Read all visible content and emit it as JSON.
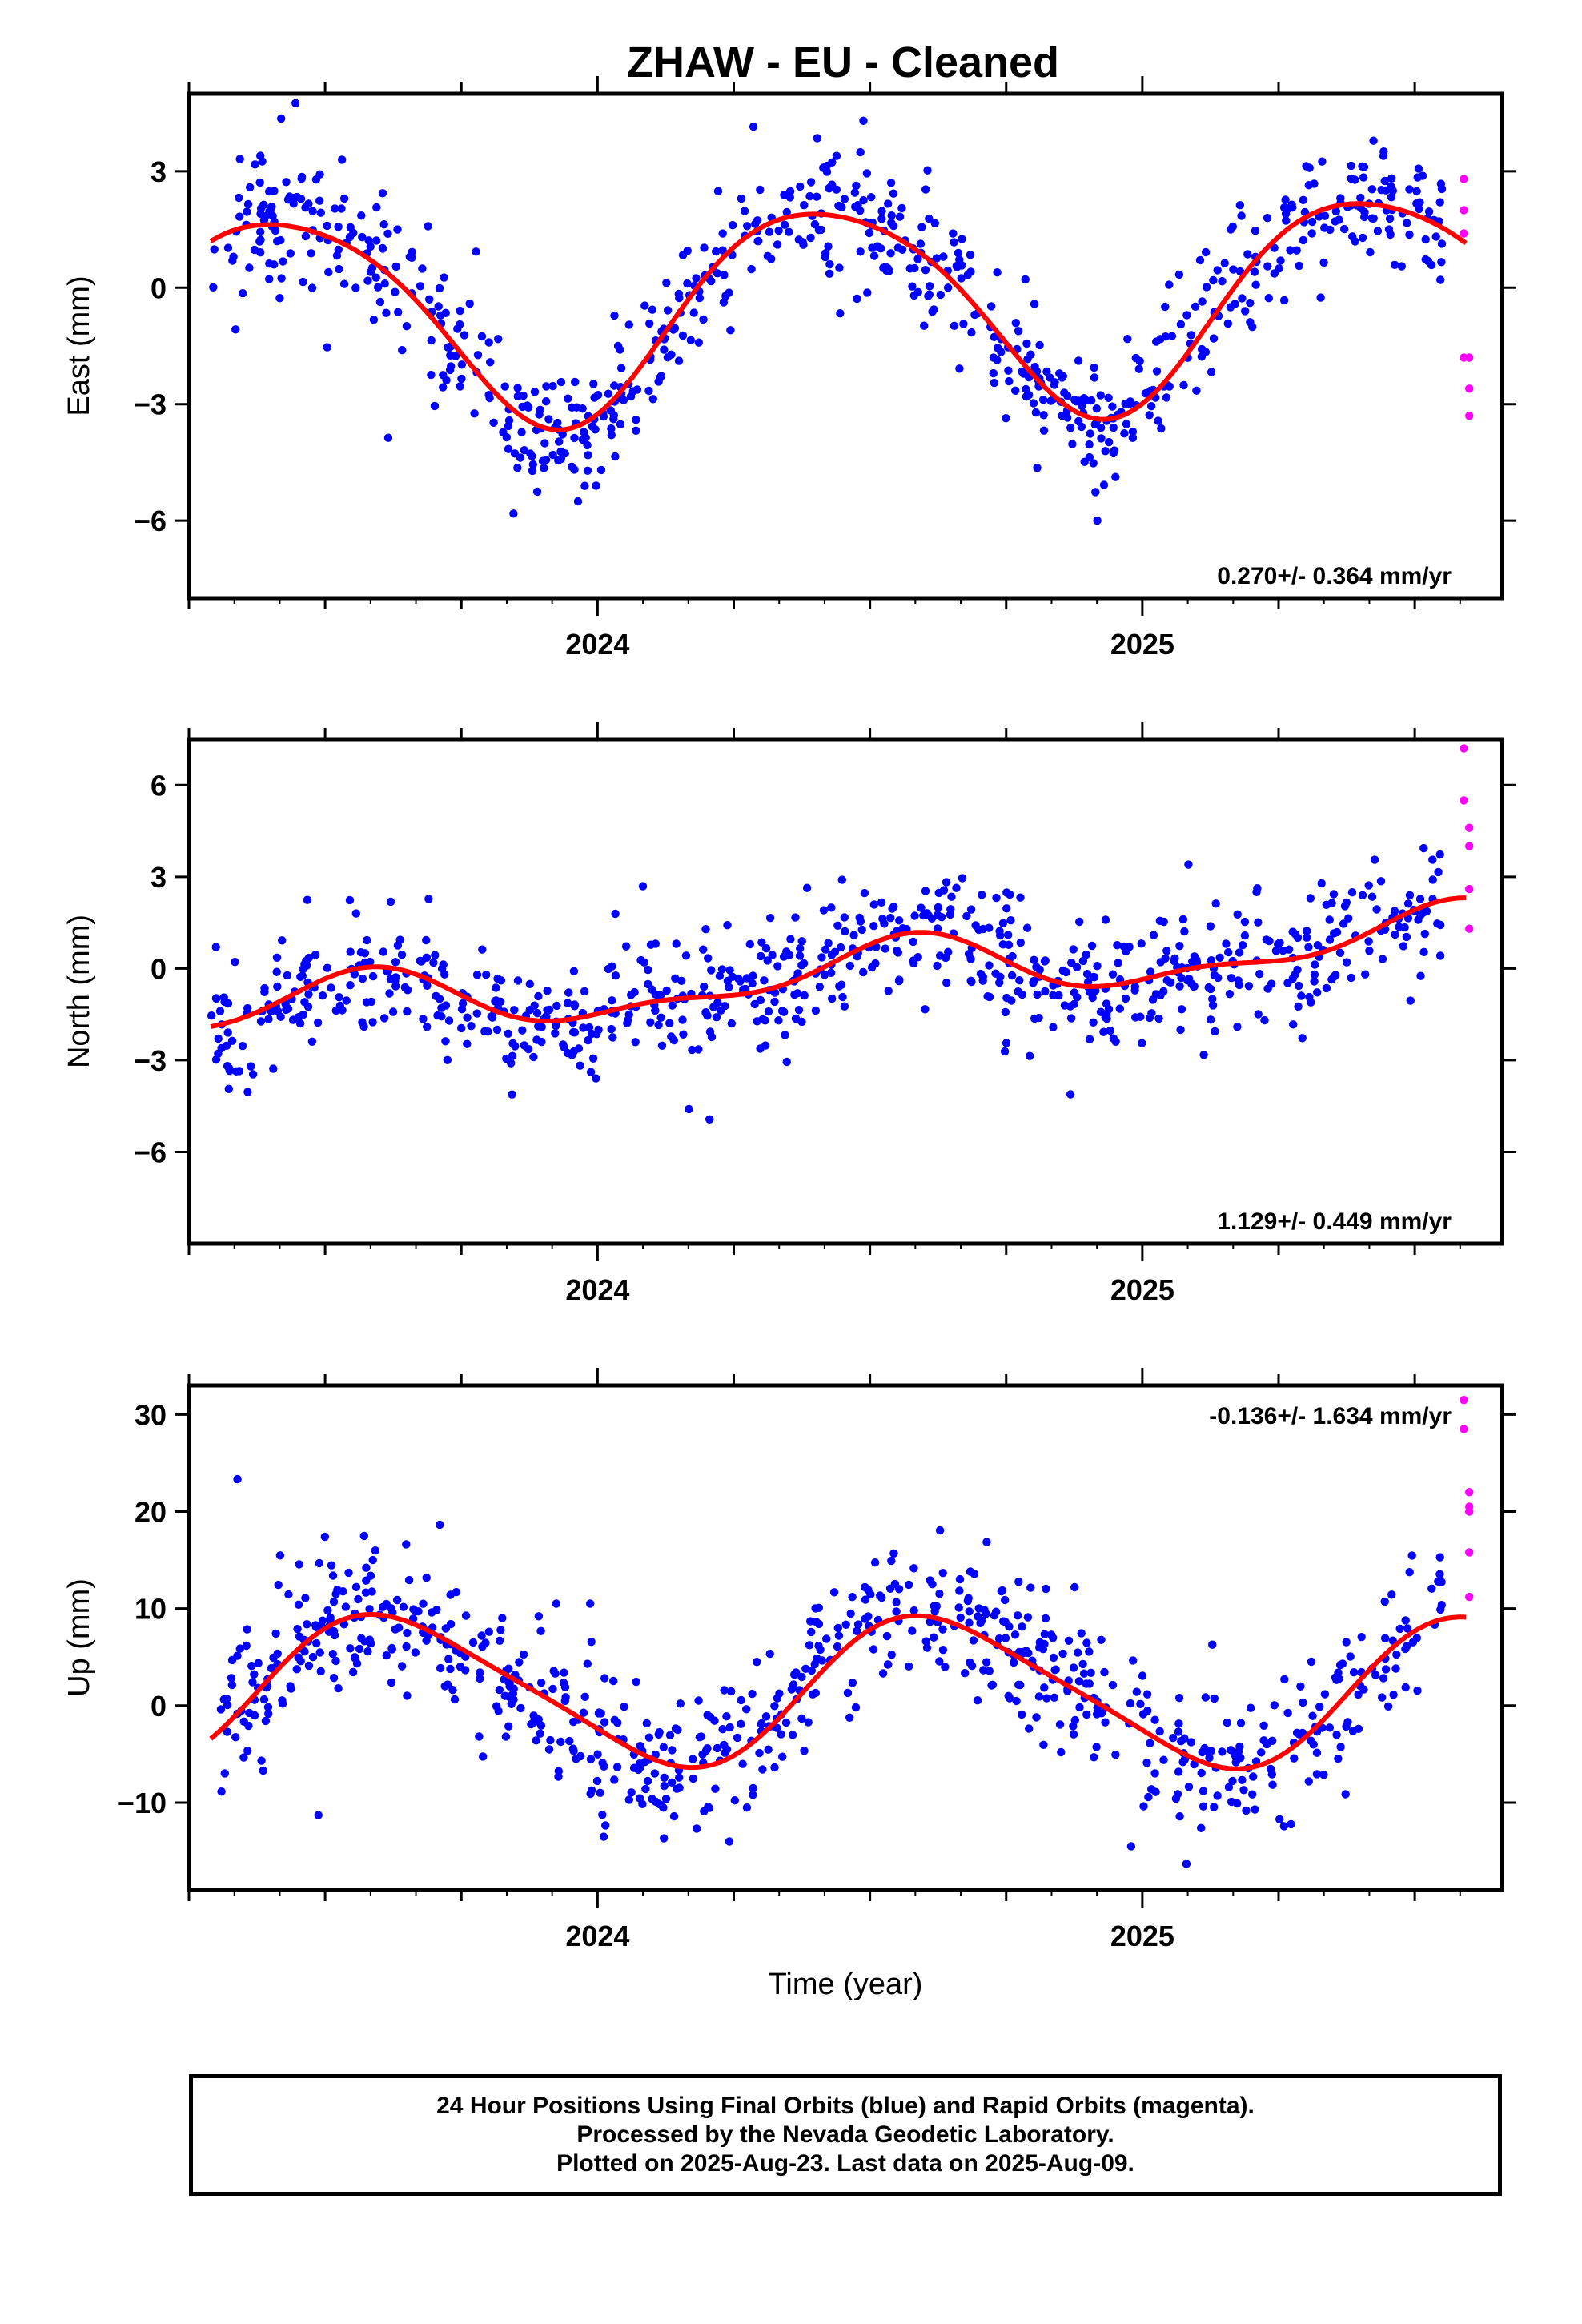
{
  "chart_data": [
    {
      "type": "scatter",
      "title": "ZHAW  - EU - Cleaned",
      "ylabel": "East (mm)",
      "xlabel": "",
      "xlim": [
        2023.25,
        2025.66
      ],
      "ylim": [
        -8.0,
        5.0
      ],
      "x_ticks": [
        {
          "value": 2024,
          "label": "2024"
        },
        {
          "value": 2025,
          "label": "2025"
        }
      ],
      "y_ticks": [
        {
          "value": 3,
          "label": "3"
        },
        {
          "value": 0,
          "label": "0"
        },
        {
          "value": -3,
          "label": "−3"
        },
        {
          "value": -6,
          "label": "−6"
        }
      ],
      "rate_text": "0.270+/- 0.364 mm/yr",
      "rate_pos": "bottom-right",
      "model": {
        "offset": -0.5,
        "trend": 0.27,
        "annual_amp": 2.7,
        "annual_peak": 2024.42,
        "semiannual_amp": 0.35,
        "semiannual_peak": 2024.2
      },
      "series": [
        {
          "name": "Final Orbits",
          "color": "#0000ff",
          "x_range": [
            2023.29,
            2025.55
          ],
          "n": 760,
          "scatter": 0.9,
          "seed": 11
        },
        {
          "name": "Rapid Orbits",
          "color": "#ff00ff",
          "x": [
            2025.59,
            2025.59,
            2025.59,
            2025.59,
            2025.6,
            2025.6,
            2025.6
          ],
          "y": [
            2.8,
            2.0,
            1.4,
            -1.8,
            -1.8,
            -2.6,
            -3.3
          ]
        }
      ]
    },
    {
      "type": "scatter",
      "title": "",
      "ylabel": "North (mm)",
      "xlabel": "",
      "xlim": [
        2023.25,
        2025.66
      ],
      "ylim": [
        -9.0,
        7.5
      ],
      "x_ticks": [
        {
          "value": 2024,
          "label": "2024"
        },
        {
          "value": 2025,
          "label": "2025"
        }
      ],
      "y_ticks": [
        {
          "value": 6,
          "label": "6"
        },
        {
          "value": 3,
          "label": "3"
        },
        {
          "value": 0,
          "label": "0"
        },
        {
          "value": -3,
          "label": "−3"
        },
        {
          "value": -6,
          "label": "−6"
        }
      ],
      "rate_text": "1.129+/- 0.449 mm/yr",
      "rate_pos": "bottom-right",
      "model": {
        "offset": -0.3,
        "trend": 1.129,
        "annual_amp": 0.9,
        "annual_peak": 2024.55,
        "semiannual_amp": 0.4,
        "semiannual_peak": 2024.6
      },
      "series": [
        {
          "name": "Final Orbits",
          "color": "#0000ff",
          "x_range": [
            2023.29,
            2025.55
          ],
          "n": 760,
          "scatter": 1.0,
          "seed": 23
        },
        {
          "name": "Rapid Orbits",
          "color": "#ff00ff",
          "x": [
            2025.59,
            2025.59,
            2025.6,
            2025.6,
            2025.6,
            2025.6
          ],
          "y": [
            7.2,
            5.5,
            4.6,
            4.0,
            2.6,
            1.3
          ]
        }
      ]
    },
    {
      "type": "scatter",
      "title": "",
      "ylabel": "Up (mm)",
      "xlabel": "Time (year)",
      "xlim": [
        2023.25,
        2025.66
      ],
      "ylim": [
        -19.0,
        33.0
      ],
      "x_ticks": [
        {
          "value": 2024,
          "label": "2024"
        },
        {
          "value": 2025,
          "label": "2025"
        }
      ],
      "y_ticks": [
        {
          "value": 30,
          "label": "30"
        },
        {
          "value": 20,
          "label": "20"
        },
        {
          "value": 10,
          "label": "10"
        },
        {
          "value": 0,
          "label": "0"
        },
        {
          "value": -10,
          "label": "−10"
        }
      ],
      "rate_text": "-0.136+/- 1.634 mm/yr",
      "rate_pos": "top-right",
      "model": {
        "offset": 1.5,
        "trend": -0.136,
        "annual_amp": 7.5,
        "annual_peak": 2024.63,
        "semiannual_amp": 1.2,
        "semiannual_peak": 2024.5
      },
      "series": [
        {
          "name": "Final Orbits",
          "color": "#0000ff",
          "x_range": [
            2023.29,
            2025.55
          ],
          "n": 760,
          "scatter": 3.8,
          "seed": 37
        },
        {
          "name": "Rapid Orbits",
          "color": "#ff00ff",
          "x": [
            2025.59,
            2025.59,
            2025.6,
            2025.6,
            2025.6,
            2025.6,
            2025.6
          ],
          "y": [
            31.5,
            28.5,
            22.0,
            20.5,
            20.0,
            15.8,
            11.2
          ]
        }
      ]
    }
  ],
  "footer": {
    "line1": "24 Hour Positions Using Final Orbits (blue) and Rapid Orbits (magenta).",
    "line2": "Processed by the Nevada Geodetic Laboratory.",
    "line3": "Plotted on 2025-Aug-23. Last data on 2025-Aug-09."
  },
  "colors": {
    "final": "#0000ff",
    "rapid": "#ff00ff",
    "model": "#ff0000",
    "axis": "#000000"
  }
}
